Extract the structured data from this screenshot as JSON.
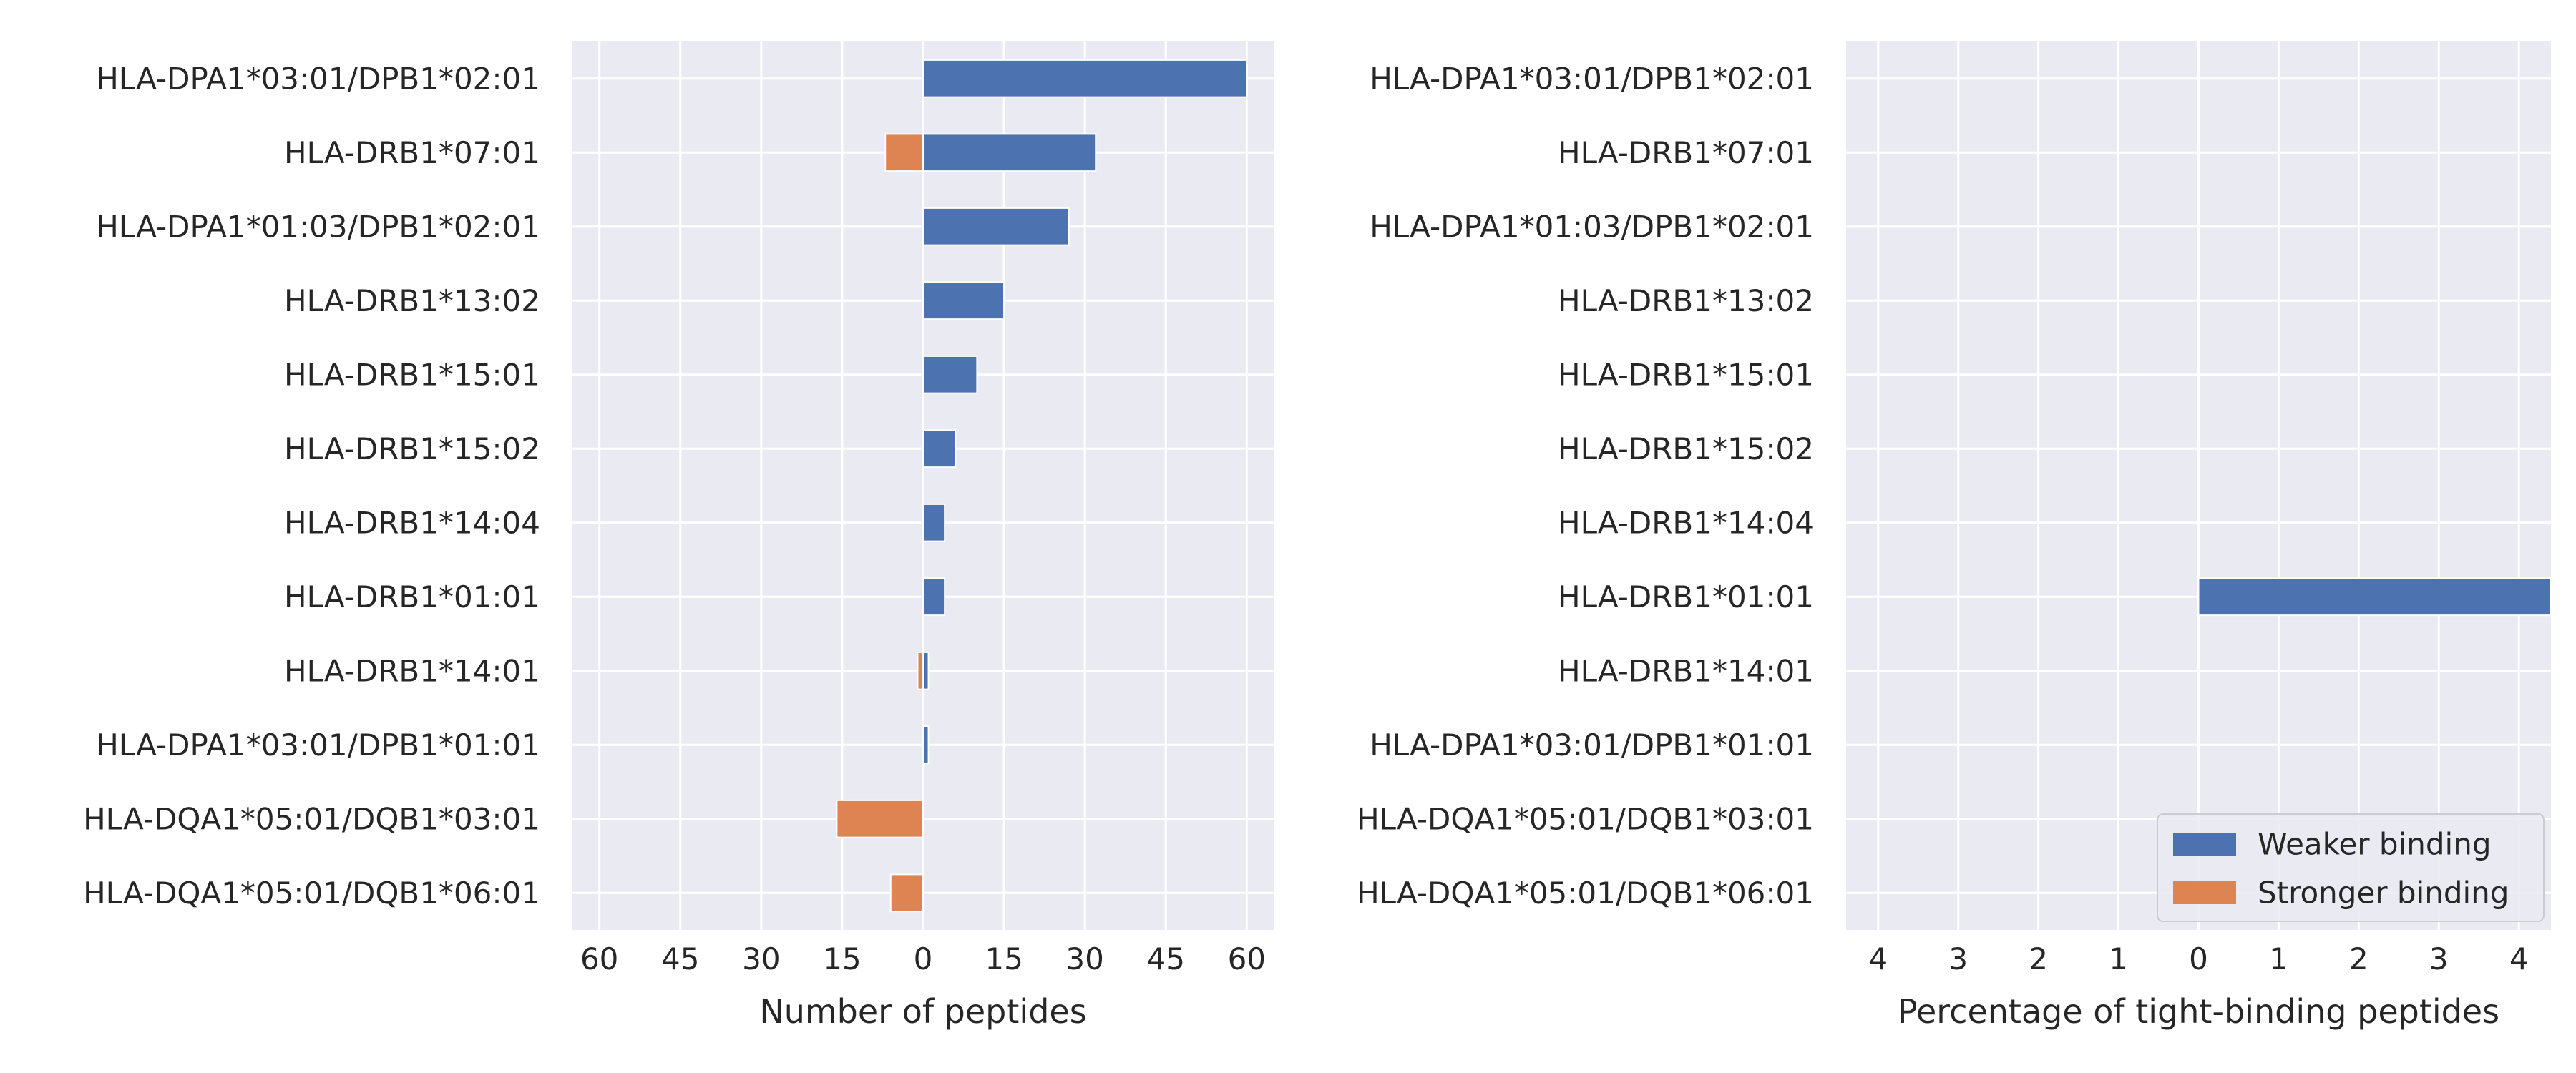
{
  "colors": {
    "weaker": "#4c72b0",
    "stronger": "#dd8452",
    "plot_bg": "#eaeaf2",
    "grid": "#ffffff"
  },
  "chart_data": [
    {
      "type": "bar",
      "orientation": "horizontal",
      "stacked": "diverging",
      "xlabel": "Number of peptides",
      "xlim": [
        -65,
        65
      ],
      "xticks": [
        -60,
        -45,
        -30,
        -15,
        0,
        15,
        30,
        45,
        60
      ],
      "xtick_labels": [
        "60",
        "45",
        "30",
        "15",
        "0",
        "15",
        "30",
        "45",
        "60"
      ],
      "categories": [
        "HLA-DPA1*03:01/DPB1*02:01",
        "HLA-DRB1*07:01",
        "HLA-DPA1*01:03/DPB1*02:01",
        "HLA-DRB1*13:02",
        "HLA-DRB1*15:01",
        "HLA-DRB1*15:02",
        "HLA-DRB1*14:04",
        "HLA-DRB1*01:01",
        "HLA-DRB1*14:01",
        "HLA-DPA1*03:01/DPB1*01:01",
        "HLA-DQA1*05:01/DQB1*03:01",
        "HLA-DQA1*05:01/DQB1*06:01"
      ],
      "series": [
        {
          "name": "Weaker binding",
          "values": [
            60,
            32,
            27,
            15,
            10,
            6,
            4,
            4,
            1,
            1,
            0,
            0
          ]
        },
        {
          "name": "Stronger binding",
          "values": [
            0,
            -7,
            0,
            0,
            0,
            0,
            0,
            0,
            -1,
            0,
            -16,
            -6
          ]
        }
      ],
      "grid": true
    },
    {
      "type": "bar",
      "orientation": "horizontal",
      "stacked": "diverging",
      "xlabel": "Percentage of tight-binding peptides",
      "xlim": [
        -4.4,
        4.4
      ],
      "xticks": [
        -4,
        -3,
        -2,
        -1,
        0,
        1,
        2,
        3,
        4
      ],
      "xtick_labels": [
        "4",
        "3",
        "2",
        "1",
        "0",
        "1",
        "2",
        "3",
        "4"
      ],
      "categories": [
        "HLA-DPA1*03:01/DPB1*02:01",
        "HLA-DRB1*07:01",
        "HLA-DPA1*01:03/DPB1*02:01",
        "HLA-DRB1*13:02",
        "HLA-DRB1*15:01",
        "HLA-DRB1*15:02",
        "HLA-DRB1*14:04",
        "HLA-DRB1*01:01",
        "HLA-DRB1*14:01",
        "HLA-DPA1*03:01/DPB1*01:01",
        "HLA-DQA1*05:01/DQB1*03:01",
        "HLA-DQA1*05:01/DQB1*06:01"
      ],
      "series": [
        {
          "name": "Weaker binding",
          "values": [
            0,
            0,
            0,
            0,
            0,
            0,
            0,
            4.4,
            0,
            0,
            0,
            0
          ]
        },
        {
          "name": "Stronger binding",
          "values": [
            0,
            0,
            0,
            0,
            0,
            0,
            0,
            0,
            0,
            0,
            0,
            0
          ]
        }
      ],
      "grid": true,
      "legend": {
        "position": "lower-right",
        "entries": [
          "Weaker binding",
          "Stronger binding"
        ]
      }
    }
  ]
}
